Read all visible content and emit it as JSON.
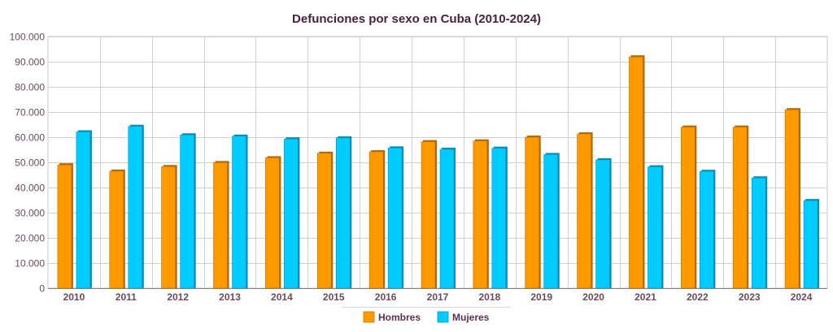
{
  "chart_data": {
    "type": "bar",
    "title": "Defunciones por sexo en Cuba (2010-2024)",
    "xlabel": "",
    "ylabel": "",
    "ylim": [
      0,
      100000
    ],
    "yticks": [
      "0",
      "10.000",
      "20.000",
      "30.000",
      "40.000",
      "50.000",
      "60.000",
      "70.000",
      "80.000",
      "90.000",
      "100.000"
    ],
    "categories": [
      "2010",
      "2011",
      "2012",
      "2013",
      "2014",
      "2015",
      "2016",
      "2017",
      "2018",
      "2019",
      "2020",
      "2021",
      "2022",
      "2023",
      "2024"
    ],
    "series": [
      {
        "name": "Hombres",
        "color": "#FF9900",
        "values": [
          49000,
          46500,
          48300,
          49900,
          51800,
          53600,
          54200,
          58200,
          58500,
          60000,
          61300,
          91900,
          64000,
          64000,
          70900
        ]
      },
      {
        "name": "Mujeres",
        "color": "#00CCFF",
        "values": [
          62100,
          64300,
          60900,
          60400,
          59300,
          59700,
          55700,
          55200,
          55600,
          53100,
          51000,
          48200,
          46400,
          43800,
          34800
        ]
      }
    ],
    "grid": true,
    "legend_position": "bottom"
  }
}
